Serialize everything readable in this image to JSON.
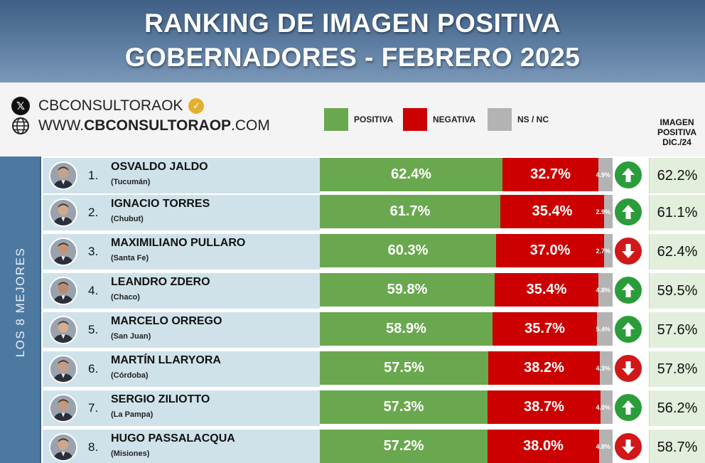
{
  "header": {
    "title_line1": "RANKING DE IMAGEN POSITIVA",
    "title_line2": "GOBERNADORES - FEBRERO 2025"
  },
  "brand": {
    "x_handle": "CBCONSULTORAOK",
    "website_prefix": "WWW.",
    "website_bold": "CBCONSULTORAOP",
    "website_suffix": ".COM"
  },
  "legend": [
    {
      "label": "POSITIVA",
      "color": "#6aa84f"
    },
    {
      "label": "NEGATIVA",
      "color": "#cc0000"
    },
    {
      "label": "NS / NC",
      "color": "#b3b3b3"
    }
  ],
  "previous_column_header": [
    "IMAGEN",
    "POSITIVA",
    "DIC./24"
  ],
  "sidebar_label": "LOS 8 MEJORES",
  "chart_data": {
    "type": "bar",
    "title": "RANKING DE IMAGEN POSITIVA GOBERNADORES - FEBRERO 2025",
    "stacked": true,
    "categories": [
      "OSVALDO JALDO",
      "IGNACIO TORRES",
      "MAXIMILIANO PULLARO",
      "LEANDRO ZDERO",
      "MARCELO ORREGO",
      "MARTÍN LLARYORA",
      "SERGIO ZILIOTTO",
      "HUGO PASSALACQUA"
    ],
    "series": [
      {
        "name": "POSITIVA",
        "values": [
          62.4,
          61.7,
          60.3,
          59.8,
          58.9,
          57.5,
          57.3,
          57.2
        ]
      },
      {
        "name": "NEGATIVA",
        "values": [
          32.7,
          35.4,
          37.0,
          35.4,
          35.7,
          38.2,
          38.7,
          38.0
        ]
      },
      {
        "name": "NS / NC",
        "values": [
          4.9,
          2.9,
          2.7,
          4.8,
          5.4,
          4.3,
          4.0,
          4.8
        ]
      }
    ],
    "previous": {
      "name": "IMAGEN POSITIVA DIC./24",
      "values": [
        62.2,
        61.1,
        62.4,
        59.5,
        57.6,
        57.8,
        56.2,
        58.7
      ]
    }
  },
  "rows": [
    {
      "rank": "1.",
      "name": "OSVALDO JALDO",
      "province": "(Tucumán)",
      "pos": "62.4%",
      "neg": "32.7%",
      "ns": "4.9%",
      "trend": "up",
      "prev": "62.2%"
    },
    {
      "rank": "2.",
      "name": "IGNACIO TORRES",
      "province": "(Chubut)",
      "pos": "61.7%",
      "neg": "35.4%",
      "ns": "2.9%",
      "trend": "up",
      "prev": "61.1%"
    },
    {
      "rank": "3.",
      "name": "MAXIMILIANO PULLARO",
      "province": "(Santa Fe)",
      "pos": "60.3%",
      "neg": "37.0%",
      "ns": "2.7%",
      "trend": "down",
      "prev": "62.4%"
    },
    {
      "rank": "4.",
      "name": "LEANDRO ZDERO",
      "province": "(Chaco)",
      "pos": "59.8%",
      "neg": "35.4%",
      "ns": "4.8%",
      "trend": "up",
      "prev": "59.5%"
    },
    {
      "rank": "5.",
      "name": "MARCELO ORREGO",
      "province": "(San Juan)",
      "pos": "58.9%",
      "neg": "35.7%",
      "ns": "5.4%",
      "trend": "up",
      "prev": "57.6%"
    },
    {
      "rank": "6.",
      "name": "MARTÍN LLARYORA",
      "province": "(Córdoba)",
      "pos": "57.5%",
      "neg": "38.2%",
      "ns": "4.3%",
      "trend": "down",
      "prev": "57.8%"
    },
    {
      "rank": "7.",
      "name": "SERGIO ZILIOTTO",
      "province": "(La Pampa)",
      "pos": "57.3%",
      "neg": "38.7%",
      "ns": "4.0%",
      "trend": "up",
      "prev": "56.2%"
    },
    {
      "rank": "8.",
      "name": "HUGO PASSALACQUA",
      "province": "(Misiones)",
      "pos": "57.2%",
      "neg": "38.0%",
      "ns": "4.8%",
      "trend": "down",
      "prev": "58.7%"
    }
  ]
}
